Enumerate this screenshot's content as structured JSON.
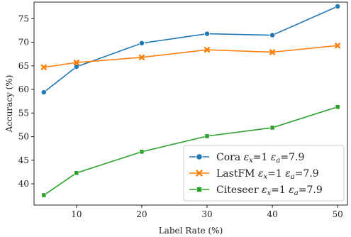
{
  "chart_data": {
    "type": "line",
    "xlabel": "Label Rate (%)",
    "ylabel": "Accuracy (%)",
    "x": [
      5,
      10,
      20,
      30,
      40,
      50
    ],
    "xticks": [
      10,
      20,
      30,
      40,
      50
    ],
    "yticks": [
      40,
      45,
      50,
      55,
      60,
      65,
      70,
      75
    ],
    "xlim": [
      3.5,
      51.5
    ],
    "ylim": [
      35.5,
      78.5
    ],
    "grid": false,
    "legend_position": "lower-right",
    "series": [
      {
        "name": "Cora ε_x=1 ε_a=7.9",
        "legend_label": {
          "name": "Cora",
          "eps_x": "=1",
          "eps_a": "=7.9"
        },
        "color": "#1f77b4",
        "marker": "circle",
        "values": [
          59.4,
          64.8,
          69.8,
          71.8,
          71.5,
          77.6
        ]
      },
      {
        "name": "LastFM ε_x=1 ε_a=7.9",
        "legend_label": {
          "name": "LastFM",
          "eps_x": "=1",
          "eps_a": "=7.9"
        },
        "color": "#ff7f0e",
        "marker": "x",
        "values": [
          64.7,
          65.7,
          66.8,
          68.4,
          67.9,
          69.3
        ]
      },
      {
        "name": "Citeseer ε_x=1 ε_a=7.9",
        "legend_label": {
          "name": "Citeseer",
          "eps_x": "=1",
          "eps_a": "=7.9"
        },
        "color": "#2ca02c",
        "marker": "square",
        "values": [
          37.6,
          42.3,
          46.8,
          50.1,
          51.9,
          56.3
        ]
      }
    ]
  }
}
